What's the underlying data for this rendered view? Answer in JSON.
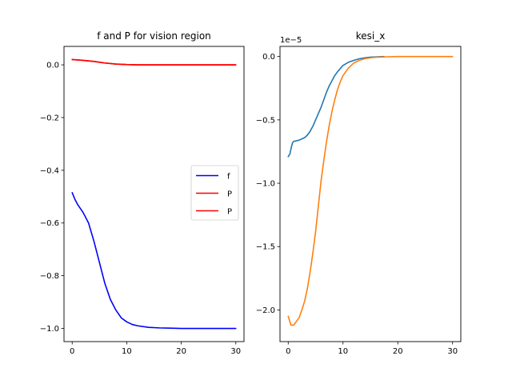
{
  "chart_data": [
    {
      "type": "line",
      "title": "f and P for vision region",
      "xlabel": "",
      "ylabel": "",
      "xlim": [
        -1.5,
        31.5
      ],
      "ylim": [
        -1.05,
        0.07
      ],
      "xticks": [
        0,
        10,
        20,
        30
      ],
      "xtick_labels": [
        "0",
        "10",
        "20",
        "30"
      ],
      "yticks": [
        0.0,
        -0.2,
        -0.4,
        -0.6,
        -0.8,
        -1.0
      ],
      "ytick_labels": [
        "0.0",
        "−0.2",
        "−0.4",
        "−0.6",
        "−0.8",
        "−1.0"
      ],
      "grid": false,
      "legend": "center-right",
      "series": [
        {
          "name": "f",
          "color": "#0000ff",
          "x": [
            0,
            0.5,
            1,
            2,
            3,
            4,
            5,
            6,
            7,
            8,
            9,
            10,
            11,
            12,
            14,
            16,
            18,
            20,
            22,
            24,
            26,
            28,
            30
          ],
          "y": [
            -0.485,
            -0.51,
            -0.53,
            -0.56,
            -0.6,
            -0.67,
            -0.75,
            -0.83,
            -0.89,
            -0.93,
            -0.96,
            -0.975,
            -0.985,
            -0.99,
            -0.996,
            -0.998,
            -0.999,
            -1.0,
            -1.0,
            -1.0,
            -1.0,
            -1.0,
            -1.0
          ]
        },
        {
          "name": "P",
          "color": "#ff0000",
          "x": [
            0,
            2,
            4,
            6,
            8,
            10,
            12,
            14,
            16,
            18,
            20,
            22,
            24,
            26,
            28,
            30
          ],
          "y": [
            0.02,
            0.017,
            0.013,
            0.007,
            0.003,
            0.001,
            0.0,
            0.0,
            0.0,
            0.0,
            0.0,
            0.0,
            0.0,
            0.0,
            0.0,
            0.0
          ]
        },
        {
          "name": "P",
          "color": "#ff0000",
          "x": [
            0,
            2,
            4,
            6,
            8,
            10,
            12,
            14,
            16,
            18,
            20,
            22,
            24,
            26,
            28,
            30
          ],
          "y": [
            0.02,
            0.017,
            0.013,
            0.007,
            0.003,
            0.001,
            0.0,
            0.0,
            0.0,
            0.0,
            0.0,
            0.0,
            0.0,
            0.0,
            0.0,
            0.0
          ]
        }
      ]
    },
    {
      "type": "line",
      "title": "kesi_x",
      "xlabel": "",
      "ylabel": "",
      "offset_label": "1e−5",
      "xlim": [
        -1.5,
        31.5
      ],
      "ylim": [
        -2.25,
        0.08
      ],
      "xticks": [
        0,
        10,
        20,
        30
      ],
      "xtick_labels": [
        "0",
        "10",
        "20",
        "30"
      ],
      "yticks": [
        0.0,
        -0.5,
        -1.0,
        -1.5,
        -2.0
      ],
      "ytick_labels": [
        "0.0",
        "−0.5",
        "−1.0",
        "−1.5",
        "−2.0"
      ],
      "grid": false,
      "series": [
        {
          "color": "#1f77b4",
          "x": [
            0,
            0.3,
            0.6,
            0.8,
            1,
            2,
            3,
            3.5,
            4,
            4.5,
            5,
            5.5,
            6,
            6.5,
            7,
            7.5,
            8,
            8.5,
            9,
            10,
            11,
            12,
            13,
            14,
            15,
            16,
            17,
            17.5
          ],
          "y": [
            -0.79,
            -0.77,
            -0.71,
            -0.68,
            -0.67,
            -0.66,
            -0.64,
            -0.62,
            -0.59,
            -0.55,
            -0.5,
            -0.45,
            -0.4,
            -0.34,
            -0.28,
            -0.23,
            -0.19,
            -0.15,
            -0.12,
            -0.07,
            -0.045,
            -0.03,
            -0.017,
            -0.01,
            -0.005,
            -0.003,
            -0.001,
            0.0
          ]
        },
        {
          "color": "#ff7f0e",
          "x": [
            0,
            0.5,
            1,
            1.5,
            2,
            2.5,
            3,
            3.5,
            4,
            4.5,
            5,
            5.5,
            6,
            6.5,
            7,
            7.5,
            8,
            8.5,
            9,
            9.5,
            10,
            11,
            12,
            13,
            14,
            15,
            16,
            18,
            20,
            22,
            24,
            26,
            28,
            30
          ],
          "y": [
            -2.05,
            -2.12,
            -2.12,
            -2.09,
            -2.06,
            -2.0,
            -1.93,
            -1.83,
            -1.7,
            -1.55,
            -1.38,
            -1.18,
            -0.98,
            -0.82,
            -0.67,
            -0.54,
            -0.43,
            -0.34,
            -0.26,
            -0.2,
            -0.15,
            -0.09,
            -0.05,
            -0.03,
            -0.017,
            -0.01,
            -0.006,
            -0.002,
            0.0,
            0.0,
            0.0,
            0.0,
            0.0,
            0.0
          ]
        }
      ]
    }
  ]
}
